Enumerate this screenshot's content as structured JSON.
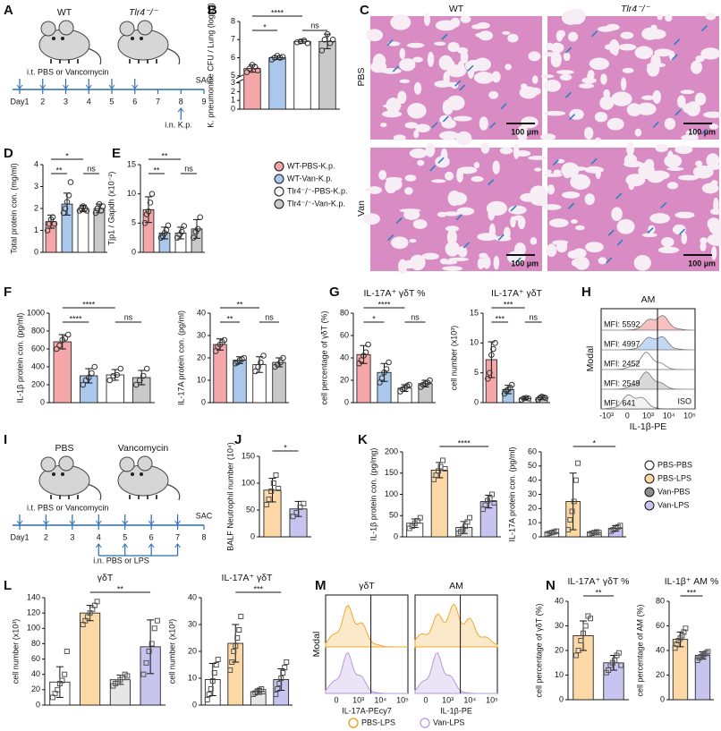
{
  "panel_labels": [
    "A",
    "B",
    "C",
    "D",
    "E",
    "F",
    "G",
    "H",
    "I",
    "J",
    "K",
    "L",
    "M",
    "N"
  ],
  "timelines": [
    {
      "groups": [
        "WT",
        "Tlr4⁻/⁻"
      ],
      "treatment": "i.t. PBS or Vancomycin",
      "days": [
        "Day1",
        "2",
        "3",
        "4",
        "5",
        "6",
        "7",
        "8",
        "9"
      ],
      "challenge": "i.n. K.p.",
      "end": "SAC"
    },
    {
      "groups": [
        "PBS",
        "Vancomycin"
      ],
      "treatment": "i.t. PBS or Vancomycin",
      "days": [
        "Day1",
        "2",
        "3",
        "4",
        "5",
        "6",
        "7",
        "8"
      ],
      "challenge": "i.n. PBS or LPS",
      "end": "SAC"
    }
  ],
  "histology": {
    "columns": [
      "WT",
      "Tlr4⁻/⁻"
    ],
    "rows": [
      "PBS",
      "Van"
    ],
    "scale_bar": "100 µm"
  },
  "legends": [
    {
      "names": [
        "WT-PBS-K.p.",
        "WT-Van-K.p.",
        "Tlr4⁻/⁻-PBS-K.p.",
        "Tlr4⁻/⁻-Van-K.p."
      ],
      "colors": [
        "#f4a6a8",
        "#a9c8ec",
        "#ffffff",
        "#c9c9c9"
      ]
    },
    {
      "names": [
        "PBS-PBS",
        "PBS-LPS",
        "Van-PBS",
        "Van-LPS"
      ],
      "colors": [
        "#ffffff",
        "#fbd8a6",
        "#8c8c8c",
        "#c7c4f0"
      ]
    },
    {
      "names": [
        "PBS-LPS",
        "Van-LPS"
      ],
      "colors": [
        "#f0a830",
        "#c4a8e0"
      ]
    }
  ],
  "flow": [
    {
      "title": "AM",
      "ylabel": "Modal",
      "xlabel": "IL-1β-PE",
      "mfi": [
        "MFI: 5592",
        "MFI: 4997",
        "MFI: 2452",
        "MFI: 2549",
        "MFI: 641"
      ],
      "iso": "ISO",
      "xticks": [
        "-10³",
        "0",
        "10³",
        "10⁴",
        "10⁵"
      ],
      "colors": [
        "#f4a6a8",
        "#a9c8ec",
        "#ffffff",
        "#c9c9c9",
        "#ececec"
      ]
    },
    {
      "ylabel": "Modal",
      "panels": [
        {
          "title": "γδT",
          "xlabel": "IL-17A-PEcy7"
        },
        {
          "title": "AM",
          "xlabel": "IL-1β-PE"
        }
      ],
      "xticks": [
        "0",
        "10³",
        "10⁴",
        "10⁵"
      ]
    }
  ],
  "chart_data": [
    {
      "type": "bar",
      "ylabel": "K. pneumoniae CFU / Lung (log10)",
      "categories": [
        null,
        null,
        null,
        null
      ],
      "values": [
        5.4,
        6.0,
        6.9,
        6.9
      ],
      "errors": [
        0.2,
        0.1,
        0.1,
        0.4
      ],
      "points": [
        [
          5.2,
          5.4,
          5.6,
          5.5,
          5.3
        ],
        [
          5.9,
          6.0,
          6.1,
          6.0,
          6.05
        ],
        [
          6.85,
          6.9,
          6.95,
          6.8
        ],
        [
          6.4,
          7.0,
          7.3,
          6.8,
          7.0
        ]
      ],
      "colors": [
        "#f4a6a8",
        "#a9c8ec",
        "#ffffff",
        "#c9c9c9"
      ],
      "marker": "circle",
      "ylim": [
        0,
        8
      ],
      "ybreak": [
        3,
        5
      ],
      "yticks": [
        0,
        1,
        2,
        3,
        5,
        6,
        7,
        8
      ],
      "sig": [
        {
          "label": "*",
          "pair": [
            0,
            1
          ]
        },
        {
          "label": "****",
          "pair": [
            0,
            2
          ]
        },
        {
          "label": "ns",
          "pair": [
            2,
            3
          ]
        }
      ]
    },
    {
      "type": "bar",
      "ylabel": "Total protein con. (mg/ml)",
      "categories": [
        null,
        null,
        null,
        null
      ],
      "values": [
        1.4,
        2.2,
        2.0,
        2.0
      ],
      "errors": [
        0.3,
        0.5,
        0.15,
        0.2
      ],
      "points": [
        [
          1.0,
          1.3,
          1.5,
          1.6,
          1.3
        ],
        [
          1.8,
          2.0,
          2.3,
          2.6,
          3.2
        ],
        [
          1.9,
          2.0,
          2.1,
          2.0,
          1.9
        ],
        [
          1.8,
          2.0,
          2.2,
          1.9,
          2.1
        ]
      ],
      "colors": [
        "#f4a6a8",
        "#a9c8ec",
        "#ffffff",
        "#c9c9c9"
      ],
      "marker": "circle",
      "ylim": [
        0,
        4
      ],
      "yticks": [
        0,
        1,
        2,
        3,
        4
      ],
      "sig": [
        {
          "label": "**",
          "pair": [
            0,
            1
          ]
        },
        {
          "label": "*",
          "pair": [
            0,
            2
          ]
        },
        {
          "label": "ns",
          "pair": [
            2,
            3
          ]
        }
      ]
    },
    {
      "type": "bar",
      "ylabel": "Tjp1 / Gapdh (x10⁻²)",
      "categories": [
        null,
        null,
        null,
        null
      ],
      "values": [
        7.3,
        3.3,
        3.3,
        4.0
      ],
      "errors": [
        2.2,
        1.0,
        1.0,
        1.6
      ],
      "points": [
        [
          5,
          6.5,
          7,
          8.5,
          10
        ],
        [
          2.5,
          2.8,
          3.3,
          3.8,
          4.6
        ],
        [
          2.5,
          3.0,
          3.5,
          4.5
        ],
        [
          2.5,
          3.5,
          4,
          6
        ]
      ],
      "colors": [
        "#f4a6a8",
        "#a9c8ec",
        "#ffffff",
        "#c9c9c9"
      ],
      "marker": "circle",
      "ylim": [
        0,
        15
      ],
      "yticks": [
        0,
        5,
        10,
        15
      ],
      "sig": [
        {
          "label": "**",
          "pair": [
            0,
            1
          ]
        },
        {
          "label": "**",
          "pair": [
            0,
            2
          ]
        },
        {
          "label": "ns",
          "pair": [
            2,
            3
          ]
        }
      ]
    },
    {
      "type": "bar",
      "ylabel": "IL-1β protein con. (pg/ml)",
      "categories": [
        null,
        null,
        null,
        null
      ],
      "values": [
        680,
        300,
        310,
        280
      ],
      "errors": [
        80,
        80,
        60,
        80
      ],
      "points": [
        [
          600,
          640,
          700,
          720,
          760
        ],
        [
          200,
          250,
          280,
          330,
          400
        ],
        [
          250,
          300,
          310,
          380
        ],
        [
          200,
          250,
          300,
          380
        ]
      ],
      "colors": [
        "#f4a6a8",
        "#a9c8ec",
        "#ffffff",
        "#c9c9c9"
      ],
      "marker": "circle",
      "ylim": [
        0,
        1000
      ],
      "yticks": [
        0,
        200,
        400,
        600,
        800,
        1000
      ],
      "sig": [
        {
          "label": "****",
          "pair": [
            0,
            1
          ]
        },
        {
          "label": "****",
          "pair": [
            0,
            2
          ]
        },
        {
          "label": "ns",
          "pair": [
            2,
            3
          ]
        }
      ]
    },
    {
      "type": "bar",
      "ylabel": "IL-17A protein con. (pg/ml)",
      "categories": [
        null,
        null,
        null,
        null
      ],
      "values": [
        26,
        19,
        17,
        18
      ],
      "errors": [
        2.5,
        1.5,
        3.5,
        2
      ],
      "points": [
        [
          23,
          25,
          26,
          27,
          28
        ],
        [
          17.5,
          18,
          19,
          19.5,
          20
        ],
        [
          14,
          16,
          18,
          21
        ],
        [
          16,
          17,
          18,
          20
        ]
      ],
      "colors": [
        "#f4a6a8",
        "#a9c8ec",
        "#ffffff",
        "#c9c9c9"
      ],
      "marker": "circle",
      "ylim": [
        0,
        40
      ],
      "yticks": [
        0,
        10,
        20,
        30,
        40
      ],
      "sig": [
        {
          "label": "**",
          "pair": [
            0,
            1
          ]
        },
        {
          "label": "**",
          "pair": [
            0,
            2
          ]
        },
        {
          "label": "ns",
          "pair": [
            2,
            3
          ]
        }
      ]
    },
    {
      "type": "bar",
      "title": "IL-17A⁺ γδT %",
      "ylabel": "cell percentage of γδT (%)",
      "categories": [
        null,
        null,
        null,
        null
      ],
      "values": [
        43,
        27,
        13,
        17
      ],
      "errors": [
        8,
        8,
        3,
        3
      ],
      "points": [
        [
          35,
          38,
          42,
          45,
          52
        ],
        [
          18,
          22,
          27,
          30,
          36
        ],
        [
          10,
          12,
          13,
          15,
          16
        ],
        [
          14,
          16,
          17,
          18,
          20
        ]
      ],
      "colors": [
        "#f4a6a8",
        "#a9c8ec",
        "#ffffff",
        "#c9c9c9"
      ],
      "marker": "circle",
      "ylim": [
        0,
        80
      ],
      "yticks": [
        0,
        20,
        40,
        60,
        80
      ],
      "sig": [
        {
          "label": "*",
          "pair": [
            0,
            1
          ]
        },
        {
          "label": "****",
          "pair": [
            0,
            2
          ]
        },
        {
          "label": "ns",
          "pair": [
            2,
            3
          ]
        }
      ]
    },
    {
      "type": "bar",
      "title": "IL-17A⁺ γδT",
      "ylabel": "cell number (x10³)",
      "categories": [
        null,
        null,
        null,
        null
      ],
      "values": [
        7.2,
        2.2,
        0.7,
        0.8
      ],
      "errors": [
        3,
        0.7,
        0.2,
        0.3
      ],
      "points": [
        [
          4,
          5,
          8,
          9,
          10
        ],
        [
          1.5,
          2,
          2.2,
          2.5,
          3
        ],
        [
          0.5,
          0.7,
          0.8,
          0.7
        ],
        [
          0.5,
          0.8,
          1,
          0.9,
          0.8
        ]
      ],
      "colors": [
        "#f4a6a8",
        "#a9c8ec",
        "#ffffff",
        "#c9c9c9"
      ],
      "marker": "circle",
      "ylim": [
        0,
        15
      ],
      "yticks": [
        0,
        5,
        10,
        15
      ],
      "sig": [
        {
          "label": "***",
          "pair": [
            0,
            1
          ]
        },
        {
          "label": "***",
          "pair": [
            0,
            2
          ]
        },
        {
          "label": "ns",
          "pair": [
            2,
            3
          ]
        }
      ]
    },
    {
      "type": "bar",
      "ylabel": "BALF Neutrophil number (10⁴)",
      "categories": [
        null,
        null
      ],
      "values": [
        87,
        52
      ],
      "errors": [
        22,
        14
      ],
      "points": [
        [
          60,
          70,
          85,
          100,
          115,
          90
        ],
        [
          38,
          45,
          55,
          62
        ]
      ],
      "colors": [
        "#fbd8a6",
        "#c7c4f0"
      ],
      "marker": "square",
      "ylim": [
        0,
        150
      ],
      "yticks": [
        0,
        50,
        100,
        150
      ],
      "sig": [
        {
          "label": "*",
          "pair": [
            0,
            1
          ]
        }
      ]
    },
    {
      "type": "bar",
      "ylabel": "IL-1β protein con. (pg/mg)",
      "categories": [
        null,
        null,
        null,
        null
      ],
      "values": [
        32,
        157,
        22,
        83
      ],
      "errors": [
        10,
        18,
        14,
        15
      ],
      "points": [
        [
          20,
          25,
          32,
          38,
          45
        ],
        [
          135,
          145,
          155,
          165,
          180,
          160
        ],
        [
          8,
          12,
          18,
          25,
          35,
          45
        ],
        [
          65,
          75,
          85,
          90,
          100,
          80
        ]
      ],
      "colors": [
        "#ffffff",
        "#fbd8a6",
        "#e6e6e6",
        "#c7c4f0"
      ],
      "marker": "square",
      "ylim": [
        0,
        200
      ],
      "yticks": [
        0,
        50,
        100,
        150,
        200
      ],
      "sig": [
        {
          "label": "****",
          "pair": [
            1,
            3
          ]
        }
      ]
    },
    {
      "type": "bar",
      "ylabel": "IL-17A protein con. (pg/ml)",
      "categories": [
        null,
        null,
        null,
        null
      ],
      "values": [
        3,
        25,
        3,
        6
      ],
      "errors": [
        1,
        20,
        1,
        2
      ],
      "points": [
        [
          2,
          2.5,
          3,
          3.5,
          4
        ],
        [
          5,
          12,
          18,
          25,
          40,
          52
        ],
        [
          2,
          2.5,
          3,
          3.5,
          3
        ],
        [
          4,
          5,
          6,
          7,
          8
        ]
      ],
      "colors": [
        "#ffffff",
        "#fbd8a6",
        "#e6e6e6",
        "#c7c4f0"
      ],
      "marker": "square",
      "ylim": [
        0,
        60
      ],
      "yticks": [
        0,
        10,
        20,
        30,
        40,
        50,
        60
      ],
      "sig": [
        {
          "label": "*",
          "pair": [
            1,
            3
          ]
        }
      ]
    },
    {
      "type": "bar",
      "title": "γδT",
      "ylabel": "cell number (x10³)",
      "categories": [
        null,
        null,
        null,
        null
      ],
      "values": [
        30,
        120,
        33,
        76
      ],
      "errors": [
        20,
        10,
        6,
        35
      ],
      "points": [
        [
          10,
          15,
          20,
          28,
          32,
          40,
          70
        ],
        [
          105,
          110,
          115,
          120,
          125,
          130,
          135
        ],
        [
          25,
          28,
          30,
          33,
          36,
          40,
          38
        ],
        [
          40,
          55,
          70,
          80,
          100,
          110
        ]
      ],
      "colors": [
        "#ffffff",
        "#fbd8a6",
        "#e6e6e6",
        "#c7c4f0"
      ],
      "marker": "square",
      "ylim": [
        0,
        140
      ],
      "yticks": [
        0,
        20,
        40,
        60,
        80,
        100,
        120,
        140
      ],
      "sig": [
        {
          "label": "**",
          "pair": [
            1,
            3
          ]
        }
      ]
    },
    {
      "type": "bar",
      "title": "IL-17A⁺ γδT",
      "ylabel": "cell number (x10³)",
      "categories": [
        null,
        null,
        null,
        null
      ],
      "values": [
        9.5,
        23,
        5,
        9.5
      ],
      "errors": [
        6,
        7,
        1,
        4
      ],
      "points": [
        [
          2,
          4,
          6,
          9,
          12,
          15,
          17
        ],
        [
          13,
          16,
          20,
          22,
          25,
          28,
          33
        ],
        [
          4,
          4.5,
          5,
          5.5,
          6,
          5
        ],
        [
          4,
          6,
          8,
          10,
          12,
          14,
          16
        ]
      ],
      "colors": [
        "#ffffff",
        "#fbd8a6",
        "#e6e6e6",
        "#c7c4f0"
      ],
      "marker": "square",
      "ylim": [
        0,
        40
      ],
      "yticks": [
        0,
        10,
        20,
        30,
        40
      ],
      "sig": [
        {
          "label": "***",
          "pair": [
            1,
            3
          ]
        }
      ]
    },
    {
      "type": "bar",
      "title": "IL-17A⁺ γδT %",
      "ylabel": "cell percentage of γδT (%)",
      "categories": [
        null,
        null
      ],
      "values": [
        26,
        15
      ],
      "errors": [
        6,
        3
      ],
      "points": [
        [
          18,
          20,
          24,
          27,
          30,
          34,
          33
        ],
        [
          11,
          12,
          14,
          15,
          16,
          18,
          19,
          14
        ]
      ],
      "colors": [
        "#fbd8a6",
        "#c7c4f0"
      ],
      "marker": "square",
      "ylim": [
        0,
        40
      ],
      "yticks": [
        0,
        10,
        20,
        30,
        40
      ],
      "sig": [
        {
          "label": "**",
          "pair": [
            0,
            1
          ]
        }
      ]
    },
    {
      "type": "bar",
      "title": "IL-1β⁺ AM %",
      "ylabel": "cell percentage of AM (%)",
      "categories": [
        null,
        null
      ],
      "values": [
        49,
        36
      ],
      "errors": [
        6,
        3
      ],
      "points": [
        [
          42,
          45,
          48,
          50,
          52,
          55,
          58
        ],
        [
          32,
          34,
          35,
          36,
          37,
          38,
          39
        ]
      ],
      "colors": [
        "#fbd8a6",
        "#c7c4f0"
      ],
      "marker": "square",
      "ylim": [
        0,
        80
      ],
      "yticks": [
        0,
        20,
        40,
        60,
        80
      ],
      "sig": [
        {
          "label": "***",
          "pair": [
            0,
            1
          ]
        }
      ]
    }
  ]
}
